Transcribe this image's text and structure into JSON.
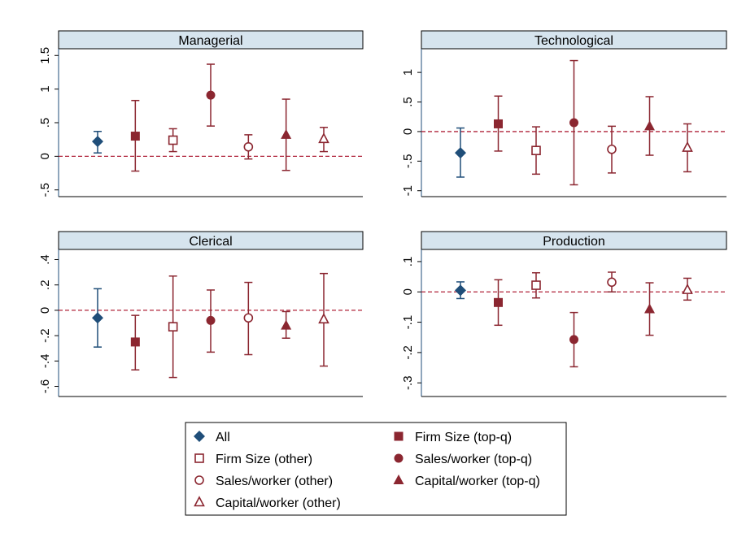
{
  "colors": {
    "all": "#1f4e79",
    "topq": "#8b2630",
    "other": "#8b2630",
    "zero_line": "#b0243a",
    "panel_header_bg": "#d6e4ee",
    "plot_border": "#1f4e79"
  },
  "chart_data": [
    {
      "type": "scatter",
      "title": "Managerial",
      "ylim": [
        -0.6,
        1.6
      ],
      "yticks": [
        -0.5,
        0,
        0.5,
        1,
        1.5
      ],
      "ytick_labels": [
        "-.5",
        "0",
        ".5",
        "1",
        "1.5"
      ],
      "series": [
        {
          "name": "All",
          "point": 0.22,
          "lo": 0.05,
          "hi": 0.37
        },
        {
          "name": "Firm Size (top-q)",
          "point": 0.3,
          "lo": -0.22,
          "hi": 0.83
        },
        {
          "name": "Firm Size (other)",
          "point": 0.24,
          "lo": 0.07,
          "hi": 0.41
        },
        {
          "name": "Sales/worker (top-q)",
          "point": 0.91,
          "lo": 0.45,
          "hi": 1.37
        },
        {
          "name": "Sales/worker (other)",
          "point": 0.14,
          "lo": -0.04,
          "hi": 0.32
        },
        {
          "name": "Capital/worker (top-q)",
          "point": 0.32,
          "lo": -0.21,
          "hi": 0.85
        },
        {
          "name": "Capital/worker (other)",
          "point": 0.26,
          "lo": 0.07,
          "hi": 0.43
        }
      ]
    },
    {
      "type": "scatter",
      "title": "Technological",
      "ylim": [
        -1.1,
        1.4
      ],
      "yticks": [
        -1,
        -0.5,
        0,
        0.5,
        1
      ],
      "ytick_labels": [
        "-1",
        "-.5",
        "0",
        ".5",
        "1"
      ],
      "series": [
        {
          "name": "All",
          "point": -0.36,
          "lo": -0.77,
          "hi": 0.06
        },
        {
          "name": "Firm Size (top-q)",
          "point": 0.13,
          "lo": -0.33,
          "hi": 0.6
        },
        {
          "name": "Firm Size (other)",
          "point": -0.32,
          "lo": -0.72,
          "hi": 0.08
        },
        {
          "name": "Sales/worker (top-q)",
          "point": 0.15,
          "lo": -0.9,
          "hi": 1.2
        },
        {
          "name": "Sales/worker (other)",
          "point": -0.3,
          "lo": -0.7,
          "hi": 0.09
        },
        {
          "name": "Capital/worker (top-q)",
          "point": 0.09,
          "lo": -0.4,
          "hi": 0.59
        },
        {
          "name": "Capital/worker (other)",
          "point": -0.27,
          "lo": -0.68,
          "hi": 0.13
        }
      ]
    },
    {
      "type": "scatter",
      "title": "Clerical",
      "ylim": [
        -0.68,
        0.48
      ],
      "yticks": [
        -0.6,
        -0.4,
        -0.2,
        0,
        0.2,
        0.4
      ],
      "ytick_labels": [
        "-.6",
        "-.4",
        "-.2",
        "0",
        ".2",
        ".4"
      ],
      "series": [
        {
          "name": "All",
          "point": -0.06,
          "lo": -0.29,
          "hi": 0.17
        },
        {
          "name": "Firm Size (top-q)",
          "point": -0.25,
          "lo": -0.47,
          "hi": -0.04
        },
        {
          "name": "Firm Size (other)",
          "point": -0.13,
          "lo": -0.53,
          "hi": 0.27
        },
        {
          "name": "Sales/worker (top-q)",
          "point": -0.08,
          "lo": -0.33,
          "hi": 0.16
        },
        {
          "name": "Sales/worker (other)",
          "point": -0.06,
          "lo": -0.35,
          "hi": 0.22
        },
        {
          "name": "Capital/worker (top-q)",
          "point": -0.12,
          "lo": -0.22,
          "hi": -0.01
        },
        {
          "name": "Capital/worker (other)",
          "point": -0.07,
          "lo": -0.44,
          "hi": 0.29
        }
      ]
    },
    {
      "type": "scatter",
      "title": "Production",
      "ylim": [
        -0.345,
        0.14
      ],
      "yticks": [
        -0.3,
        -0.2,
        -0.1,
        0,
        0.1
      ],
      "ytick_labels": [
        "-.3",
        "-.2",
        "-.1",
        "0",
        ".1"
      ],
      "series": [
        {
          "name": "All",
          "point": 0.005,
          "lo": -0.022,
          "hi": 0.033
        },
        {
          "name": "Firm Size (top-q)",
          "point": -0.035,
          "lo": -0.11,
          "hi": 0.04
        },
        {
          "name": "Firm Size (other)",
          "point": 0.022,
          "lo": -0.02,
          "hi": 0.063
        },
        {
          "name": "Sales/worker (top-q)",
          "point": -0.157,
          "lo": -0.247,
          "hi": -0.068
        },
        {
          "name": "Sales/worker (other)",
          "point": 0.032,
          "lo": 0.0,
          "hi": 0.065
        },
        {
          "name": "Capital/worker (top-q)",
          "point": -0.057,
          "lo": -0.143,
          "hi": 0.03
        },
        {
          "name": "Capital/worker (other)",
          "point": 0.007,
          "lo": -0.027,
          "hi": 0.045
        }
      ]
    }
  ],
  "legend": {
    "items": [
      {
        "label": "All",
        "marker": "diamond-filled",
        "color": "#1f4e79"
      },
      {
        "label": "Firm Size (top-q)",
        "marker": "square-filled",
        "color": "#8b2630"
      },
      {
        "label": "Firm Size (other)",
        "marker": "square-hollow",
        "color": "#8b2630"
      },
      {
        "label": "Sales/worker (top-q)",
        "marker": "circle-filled",
        "color": "#8b2630"
      },
      {
        "label": "Sales/worker (other)",
        "marker": "circle-hollow",
        "color": "#8b2630"
      },
      {
        "label": "Capital/worker (top-q)",
        "marker": "triangle-filled",
        "color": "#8b2630"
      },
      {
        "label": "Capital/worker (other)",
        "marker": "triangle-hollow",
        "color": "#8b2630"
      }
    ]
  }
}
